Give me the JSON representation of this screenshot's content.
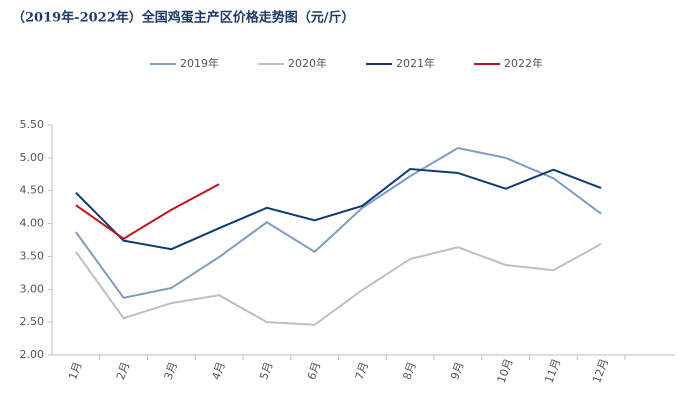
{
  "chart_data": {
    "type": "line",
    "title": "（2019年-2022年）全国鸡蛋主产区价格走势图（元/斤）",
    "categories": [
      "1月",
      "2月",
      "3月",
      "4月",
      "5月",
      "6月",
      "7月",
      "8月",
      "9月",
      "10月",
      "11月",
      "12月"
    ],
    "series": [
      {
        "name": "2019年",
        "color": "#7f9cc2",
        "values": [
          3.87,
          2.87,
          3.02,
          3.49,
          4.02,
          3.57,
          4.24,
          4.72,
          5.15,
          5.0,
          4.69,
          4.15
        ]
      },
      {
        "name": "2020年",
        "color": "#bfbfbf",
        "values": [
          3.57,
          2.56,
          2.79,
          2.91,
          2.5,
          2.46,
          2.99,
          3.46,
          3.64,
          3.37,
          3.29,
          3.69
        ]
      },
      {
        "name": "2021年",
        "color": "#0f3a7a",
        "values": [
          4.47,
          3.74,
          3.61,
          3.93,
          4.24,
          4.05,
          4.27,
          4.83,
          4.77,
          4.53,
          4.82,
          4.54
        ]
      },
      {
        "name": "2022年",
        "color": "#c0141e",
        "values": [
          4.28,
          3.77,
          4.21,
          4.6,
          null,
          null,
          null,
          null,
          null,
          null,
          null,
          null
        ]
      }
    ],
    "ylim": [
      2,
      5.5
    ],
    "yticks": [
      {
        "value": 2,
        "label": "2.00"
      },
      {
        "value": 2.5,
        "label": "2.50"
      },
      {
        "value": 3,
        "label": "3.00"
      },
      {
        "value": 3.5,
        "label": "3.50"
      },
      {
        "value": 4,
        "label": "4.00"
      },
      {
        "value": 4.5,
        "label": "4.50"
      },
      {
        "value": 5,
        "label": "5.00"
      },
      {
        "value": 5.5,
        "label": "5.50"
      }
    ],
    "grid": false,
    "legend": "top"
  }
}
